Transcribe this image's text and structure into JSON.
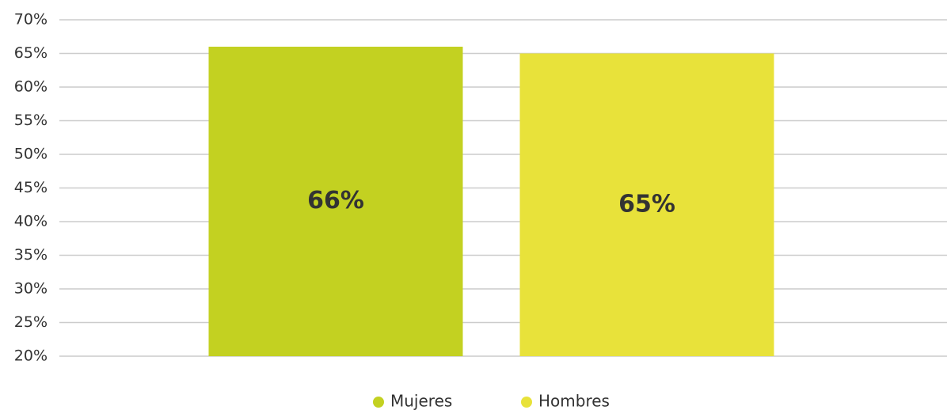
{
  "chart_data": {
    "type": "bar",
    "categories": [
      null
    ],
    "series": [
      {
        "name": "Mujeres",
        "color": "#c3d121",
        "values": [
          66
        ],
        "value_labels": [
          "66%"
        ]
      },
      {
        "name": "Hombres",
        "color": "#e8e23a",
        "values": [
          65
        ],
        "value_labels": [
          "65%"
        ]
      }
    ],
    "ylim": [
      20,
      70
    ],
    "yticks": [
      {
        "value": 20,
        "label": "20%"
      },
      {
        "value": 25,
        "label": "25%"
      },
      {
        "value": 30,
        "label": "30%"
      },
      {
        "value": 35,
        "label": "35%"
      },
      {
        "value": 40,
        "label": "40%"
      },
      {
        "value": 45,
        "label": "45%"
      },
      {
        "value": 50,
        "label": "50%"
      },
      {
        "value": 55,
        "label": "55%"
      },
      {
        "value": 60,
        "label": "60%"
      },
      {
        "value": 65,
        "label": "65%"
      },
      {
        "value": 70,
        "label": "70%"
      }
    ],
    "grid": true,
    "legend": "bottom"
  }
}
